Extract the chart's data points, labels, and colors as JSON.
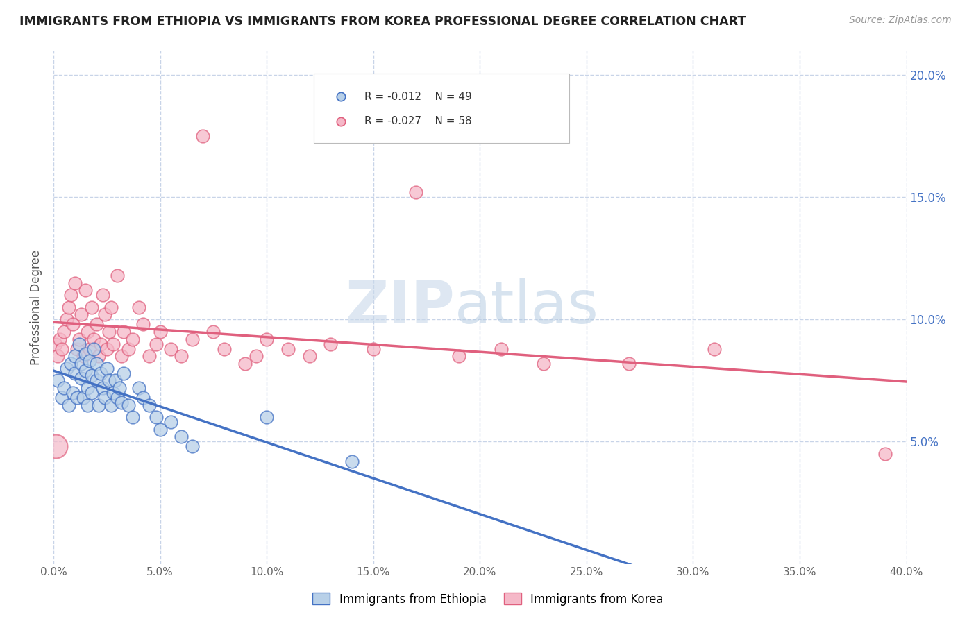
{
  "title": "IMMIGRANTS FROM ETHIOPIA VS IMMIGRANTS FROM KOREA PROFESSIONAL DEGREE CORRELATION CHART",
  "source_text": "Source: ZipAtlas.com",
  "ylabel": "Professional Degree",
  "xlim": [
    0.0,
    0.4
  ],
  "ylim": [
    0.0,
    0.21
  ],
  "xticks": [
    0.0,
    0.05,
    0.1,
    0.15,
    0.2,
    0.25,
    0.3,
    0.35,
    0.4
  ],
  "yticks_right": [
    0.05,
    0.1,
    0.15,
    0.2
  ],
  "ytick_labels_right": [
    "5.0%",
    "10.0%",
    "15.0%",
    "20.0%"
  ],
  "xtick_labels": [
    "0.0%",
    "5.0%",
    "10.0%",
    "15.0%",
    "20.0%",
    "25.0%",
    "30.0%",
    "35.0%",
    "40.0%"
  ],
  "legend_r1": "R = -0.012",
  "legend_n1": "N = 49",
  "legend_r2": "R = -0.027",
  "legend_n2": "N = 58",
  "series1_color": "#b8d0e8",
  "series2_color": "#f5b8c8",
  "trend1_color": "#4472c4",
  "trend2_color": "#e0607e",
  "background_color": "#ffffff",
  "grid_color": "#c8d4e8",
  "watermark_color": "#d8e4f0",
  "ethiopia_x": [
    0.002,
    0.004,
    0.005,
    0.006,
    0.007,
    0.008,
    0.009,
    0.01,
    0.01,
    0.011,
    0.012,
    0.013,
    0.013,
    0.014,
    0.015,
    0.015,
    0.016,
    0.016,
    0.017,
    0.018,
    0.018,
    0.019,
    0.02,
    0.02,
    0.021,
    0.022,
    0.023,
    0.024,
    0.025,
    0.026,
    0.027,
    0.028,
    0.029,
    0.03,
    0.031,
    0.032,
    0.033,
    0.035,
    0.037,
    0.04,
    0.042,
    0.045,
    0.048,
    0.05,
    0.055,
    0.06,
    0.065,
    0.1,
    0.14
  ],
  "ethiopia_y": [
    0.075,
    0.068,
    0.072,
    0.08,
    0.065,
    0.082,
    0.07,
    0.085,
    0.078,
    0.068,
    0.09,
    0.076,
    0.082,
    0.068,
    0.079,
    0.086,
    0.072,
    0.065,
    0.083,
    0.077,
    0.07,
    0.088,
    0.075,
    0.082,
    0.065,
    0.078,
    0.072,
    0.068,
    0.08,
    0.075,
    0.065,
    0.07,
    0.075,
    0.068,
    0.072,
    0.066,
    0.078,
    0.065,
    0.06,
    0.072,
    0.068,
    0.065,
    0.06,
    0.055,
    0.058,
    0.052,
    0.048,
    0.06,
    0.042
  ],
  "korea_x": [
    0.001,
    0.002,
    0.003,
    0.004,
    0.005,
    0.006,
    0.007,
    0.008,
    0.009,
    0.01,
    0.011,
    0.012,
    0.013,
    0.014,
    0.015,
    0.016,
    0.017,
    0.018,
    0.019,
    0.02,
    0.021,
    0.022,
    0.023,
    0.024,
    0.025,
    0.026,
    0.027,
    0.028,
    0.03,
    0.032,
    0.033,
    0.035,
    0.037,
    0.04,
    0.042,
    0.045,
    0.048,
    0.05,
    0.055,
    0.06,
    0.065,
    0.07,
    0.075,
    0.08,
    0.09,
    0.095,
    0.1,
    0.11,
    0.12,
    0.13,
    0.15,
    0.17,
    0.19,
    0.21,
    0.23,
    0.27,
    0.31,
    0.39
  ],
  "korea_y": [
    0.09,
    0.085,
    0.092,
    0.088,
    0.095,
    0.1,
    0.105,
    0.11,
    0.098,
    0.115,
    0.088,
    0.092,
    0.102,
    0.085,
    0.112,
    0.095,
    0.088,
    0.105,
    0.092,
    0.098,
    0.085,
    0.09,
    0.11,
    0.102,
    0.088,
    0.095,
    0.105,
    0.09,
    0.118,
    0.085,
    0.095,
    0.088,
    0.092,
    0.105,
    0.098,
    0.085,
    0.09,
    0.095,
    0.088,
    0.085,
    0.092,
    0.175,
    0.095,
    0.088,
    0.082,
    0.085,
    0.092,
    0.088,
    0.085,
    0.09,
    0.088,
    0.152,
    0.085,
    0.088,
    0.082,
    0.082,
    0.088,
    0.045
  ],
  "korea_large_x": [
    0.001
  ],
  "korea_large_y": [
    0.05
  ]
}
